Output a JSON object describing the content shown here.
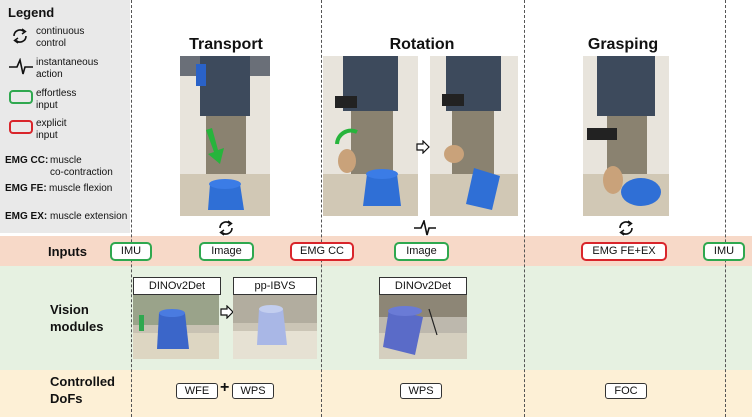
{
  "legend": {
    "title": "Legend",
    "items": [
      {
        "icon": "cycle-icon",
        "text": "continuous\ncontrol"
      },
      {
        "icon": "spike-icon",
        "text": "instantaneous\naction"
      },
      {
        "icon": "green-box",
        "text": "effortless\ninput"
      },
      {
        "icon": "red-box",
        "text": "explicit\ninput"
      }
    ],
    "emg_cc": {
      "abbr": "EMG CC:",
      "desc": "muscle\nco-contraction"
    },
    "emg_fe": {
      "abbr": "EMG FE:",
      "desc": "muscle flexion"
    },
    "emg_ex": {
      "abbr": "EMG EX:",
      "desc": "muscle extension"
    }
  },
  "phases": {
    "transport": "Transport",
    "rotation": "Rotation",
    "grasping": "Grasping"
  },
  "rows": {
    "inputs": "Inputs",
    "vision": "Vision\nmodules",
    "dofs": "Controlled\nDoFs"
  },
  "inputs": {
    "imu_left": "IMU",
    "image_transport": "Image",
    "emg_cc": "EMG CC",
    "image_rotation": "Image",
    "emg_fe_ex": "EMG FE+EX",
    "imu_right": "IMU"
  },
  "vision_modules": {
    "dinov2det_1": "DINOv2Det",
    "pp_ibvs": "pp-IBVS",
    "dinov2det_2": "DINOv2Det"
  },
  "dofs": {
    "wfe": "WFE",
    "plus": "+",
    "wps_transport": "WPS",
    "wps_rotation": "WPS",
    "foc": "FOC"
  },
  "colors": {
    "effortless": "#2fa84f",
    "explicit": "#d9252b",
    "inputs_band": "#f7d9c8",
    "vision_band": "#e6f1e1",
    "dofs_band": "#fdf0d6",
    "legend_bg": "#e9e9e9"
  }
}
